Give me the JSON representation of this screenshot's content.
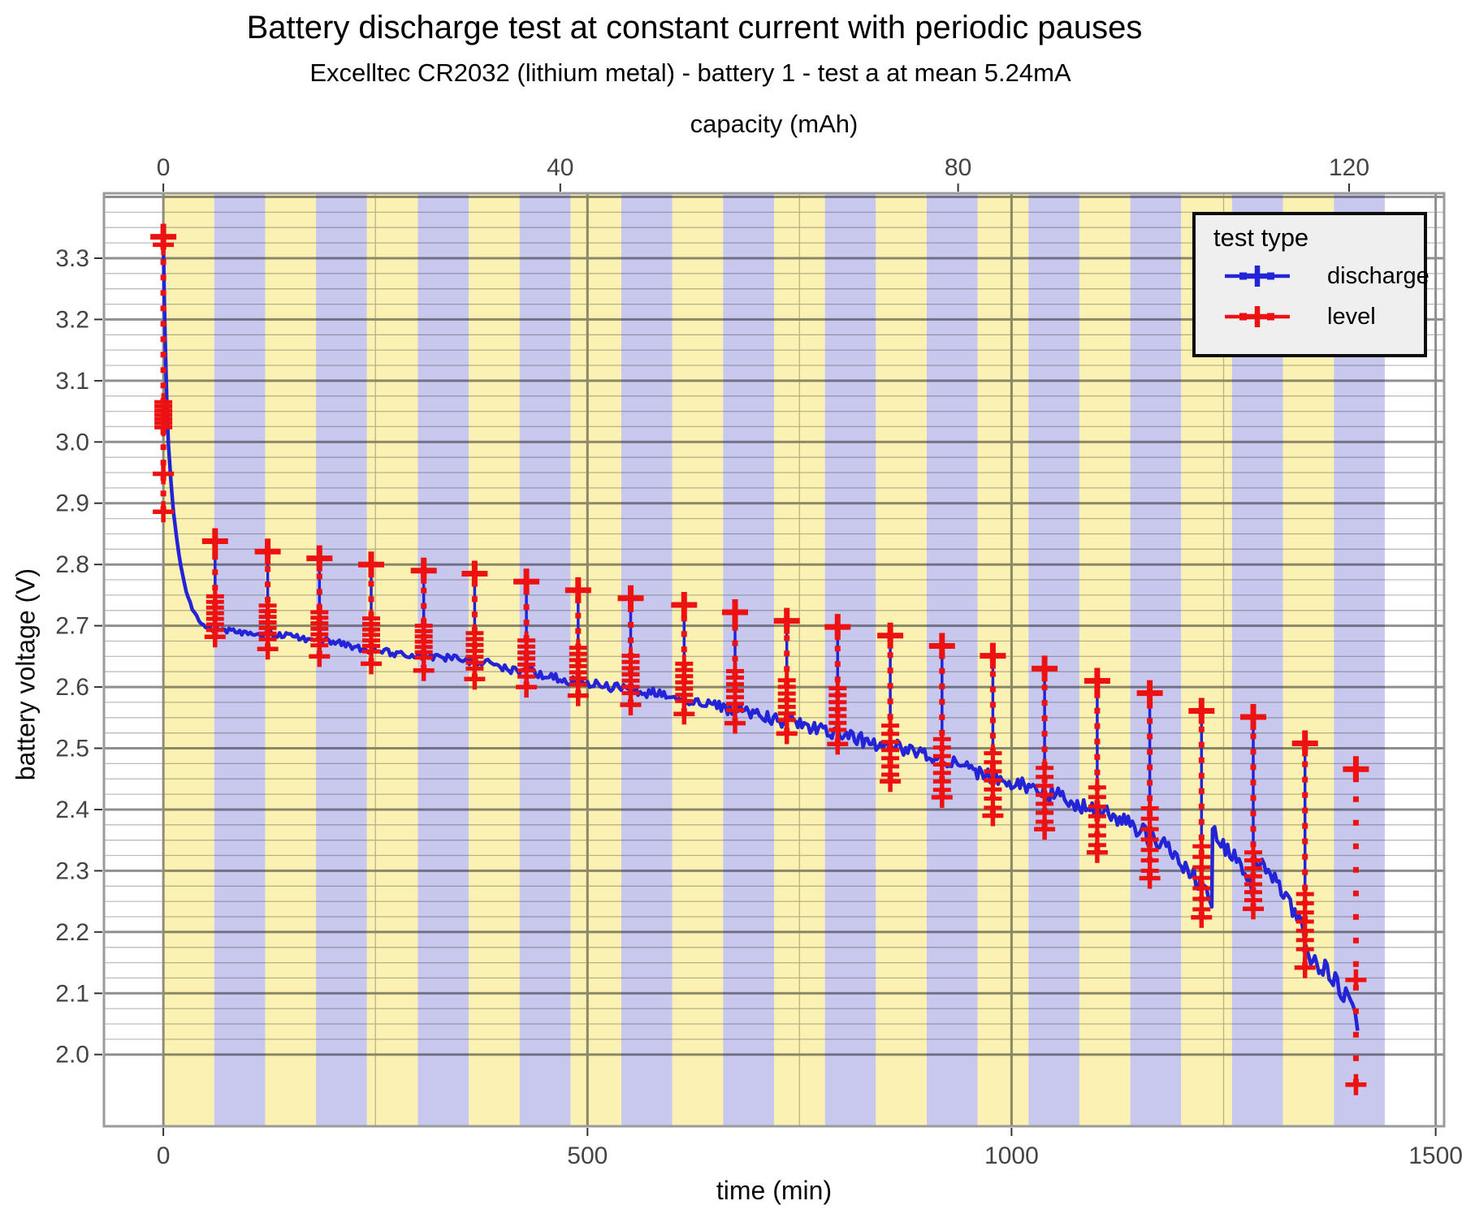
{
  "title": "Battery discharge test at constant current with periodic pauses",
  "subtitle": "Excelltec CR2032 (lithium metal) - battery 1 - test a at mean 5.24mA",
  "legend": {
    "title": "test type",
    "entries": [
      {
        "label": "discharge",
        "color": "#2323d7"
      },
      {
        "label": "level",
        "color": "#ee1111"
      }
    ]
  },
  "chart_data": {
    "type": "line",
    "title": "Battery discharge test at constant current with periodic pauses",
    "subtitle": "Excelltec CR2032 (lithium metal) - battery 1 - test a at mean 5.24mA",
    "x_axis": {
      "label": "time (min)",
      "range": [
        -70,
        1510
      ],
      "major_ticks": [
        0,
        500,
        1000,
        1500
      ],
      "minor_ticks": [
        250,
        750,
        1250
      ]
    },
    "x2_axis": {
      "label": "capacity (mAh)",
      "major_ticks": [
        0,
        40,
        80,
        120
      ],
      "tick_time_positions": [
        0,
        468,
        937,
        1398
      ]
    },
    "y_axis": {
      "label": "battery voltage (V)",
      "range": [
        1.883,
        3.406
      ],
      "major_tick_values": [
        2.0,
        2.1,
        2.2,
        2.3,
        2.4,
        2.5,
        2.6,
        2.7,
        2.8,
        2.9,
        3.0,
        3.1,
        3.2,
        3.3
      ],
      "major_grid_min": 2.0,
      "major_grid_max": 3.4,
      "major_step": 0.1,
      "minor_step": 0.025,
      "minor_grid_min": 2.025,
      "minor_grid_max": 3.375
    },
    "bands": {
      "start_min": 0,
      "band_width_min": 60,
      "count": 24,
      "colors": [
        "#faf1b2",
        "#c8c8ef"
      ],
      "meaning": "alternating 60-minute test segments"
    },
    "colors": {
      "band_yellow": "#faf1b2",
      "band_lavender": "#c8c8ef",
      "discharge_blue": "#2323d7",
      "level_red": "#ee1111",
      "panel_border": "#9b9b9b",
      "grid_major": "#8f8f8f",
      "grid_minor": "#bdbdbd",
      "tick_mark": "#333333",
      "tick_label": "#444444",
      "legend_bg": "#efefef",
      "legend_border": "#0d0d0d"
    },
    "series": [
      {
        "name": "discharge",
        "color": "#2323d7",
        "points": [
          [
            0,
            3.33
          ],
          [
            1,
            3.245
          ],
          [
            2,
            3.175
          ],
          [
            4,
            3.07
          ],
          [
            6,
            2.995
          ],
          [
            9,
            2.935
          ],
          [
            12,
            2.885
          ],
          [
            16,
            2.838
          ],
          [
            21,
            2.795
          ],
          [
            27,
            2.758
          ],
          [
            34,
            2.728
          ],
          [
            42,
            2.708
          ],
          [
            50,
            2.698
          ],
          [
            60,
            2.692
          ],
          [
            62,
            2.697
          ],
          [
            80,
            2.691
          ],
          [
            100,
            2.688
          ],
          [
            122,
            2.685
          ],
          [
            124,
            2.688
          ],
          [
            150,
            2.683
          ],
          [
            183,
            2.676
          ],
          [
            185,
            2.679
          ],
          [
            205,
            2.672
          ],
          [
            230,
            2.664
          ],
          [
            244,
            2.66
          ],
          [
            246,
            2.663
          ],
          [
            270,
            2.656
          ],
          [
            306,
            2.648
          ],
          [
            308,
            2.651
          ],
          [
            335,
            2.647
          ],
          [
            366,
            2.64
          ],
          [
            368,
            2.643
          ],
          [
            400,
            2.632
          ],
          [
            427,
            2.624
          ],
          [
            429,
            2.627
          ],
          [
            460,
            2.616
          ],
          [
            488,
            2.607
          ],
          [
            490,
            2.61
          ],
          [
            520,
            2.601
          ],
          [
            550,
            2.595
          ],
          [
            552,
            2.598
          ],
          [
            580,
            2.588
          ],
          [
            613,
            2.579
          ],
          [
            615,
            2.582
          ],
          [
            645,
            2.571
          ],
          [
            673,
            2.562
          ],
          [
            675,
            2.565
          ],
          [
            700,
            2.555
          ],
          [
            734,
            2.543
          ],
          [
            736,
            2.546
          ],
          [
            765,
            2.534
          ],
          [
            796,
            2.522
          ],
          [
            798,
            2.525
          ],
          [
            830,
            2.511
          ],
          [
            856,
            2.501
          ],
          [
            858,
            2.505
          ],
          [
            890,
            2.49
          ],
          [
            917,
            2.479
          ],
          [
            919,
            2.482
          ],
          [
            950,
            2.466
          ],
          [
            977,
            2.453
          ],
          [
            979,
            2.456
          ],
          [
            1010,
            2.441
          ],
          [
            1038,
            2.427
          ],
          [
            1040,
            2.43
          ],
          [
            1070,
            2.414
          ],
          [
            1100,
            2.399
          ],
          [
            1102,
            2.402
          ],
          [
            1130,
            2.385
          ],
          [
            1160,
            2.358
          ],
          [
            1162,
            2.352
          ],
          [
            1164,
            2.356
          ],
          [
            1185,
            2.335
          ],
          [
            1205,
            2.308
          ],
          [
            1220,
            2.282
          ],
          [
            1232,
            2.258
          ],
          [
            1236,
            2.248
          ],
          [
            1237,
            2.368
          ],
          [
            1252,
            2.34
          ],
          [
            1268,
            2.312
          ],
          [
            1280,
            2.29
          ],
          [
            1284,
            2.266
          ],
          [
            1286,
            2.326
          ],
          [
            1300,
            2.3
          ],
          [
            1318,
            2.268
          ],
          [
            1334,
            2.236
          ],
          [
            1344,
            2.212
          ],
          [
            1346,
            2.185
          ],
          [
            1348,
            2.168
          ],
          [
            1360,
            2.152
          ],
          [
            1372,
            2.136
          ],
          [
            1384,
            2.115
          ],
          [
            1394,
            2.096
          ],
          [
            1402,
            2.074
          ],
          [
            1408,
            2.048
          ]
        ]
      },
      {
        "name": "level",
        "color": "#ee1111",
        "spikes": [
          {
            "t": 0,
            "top": 3.335,
            "cluster_hi": 3.065,
            "cluster_lo": 3.024,
            "bottom": 2.886,
            "extra_marks": [
              3.322,
              2.948
            ]
          },
          {
            "t": 61,
            "top": 2.838,
            "cluster_hi": 2.748,
            "cluster_lo": 2.693,
            "bottom": 2.682
          },
          {
            "t": 123,
            "top": 2.821,
            "cluster_hi": 2.733,
            "cluster_lo": 2.678,
            "bottom": 2.662
          },
          {
            "t": 184,
            "top": 2.81,
            "cluster_hi": 2.722,
            "cluster_lo": 2.668,
            "bottom": 2.65
          },
          {
            "t": 245,
            "top": 2.8,
            "cluster_hi": 2.712,
            "cluster_lo": 2.658,
            "bottom": 2.638
          },
          {
            "t": 307,
            "top": 2.79,
            "cluster_hi": 2.7,
            "cluster_lo": 2.648,
            "bottom": 2.627
          },
          {
            "t": 367,
            "top": 2.785,
            "cluster_hi": 2.688,
            "cluster_lo": 2.63,
            "bottom": 2.613
          },
          {
            "t": 428,
            "top": 2.772,
            "cluster_hi": 2.676,
            "cluster_lo": 2.617,
            "bottom": 2.6
          },
          {
            "t": 489,
            "top": 2.758,
            "cluster_hi": 2.664,
            "cluster_lo": 2.604,
            "bottom": 2.586
          },
          {
            "t": 551,
            "top": 2.745,
            "cluster_hi": 2.651,
            "cluster_lo": 2.59,
            "bottom": 2.571
          },
          {
            "t": 614,
            "top": 2.734,
            "cluster_hi": 2.638,
            "cluster_lo": 2.577,
            "bottom": 2.556
          },
          {
            "t": 674,
            "top": 2.722,
            "cluster_hi": 2.626,
            "cluster_lo": 2.562,
            "bottom": 2.541
          },
          {
            "t": 735,
            "top": 2.708,
            "cluster_hi": 2.611,
            "cluster_lo": 2.546,
            "bottom": 2.524
          },
          {
            "t": 795,
            "top": 2.698,
            "cluster_hi": 2.598,
            "cluster_lo": 2.53,
            "bottom": 2.507
          },
          {
            "t": 857,
            "top": 2.684,
            "cluster_hi": 2.537,
            "cluster_lo": 2.457,
            "bottom": 2.446
          },
          {
            "t": 918,
            "top": 2.667,
            "cluster_hi": 2.515,
            "cluster_lo": 2.432,
            "bottom": 2.42
          },
          {
            "t": 978,
            "top": 2.651,
            "cluster_hi": 2.492,
            "cluster_lo": 2.403,
            "bottom": 2.39
          },
          {
            "t": 1039,
            "top": 2.63,
            "cluster_hi": 2.468,
            "cluster_lo": 2.38,
            "bottom": 2.368
          },
          {
            "t": 1101,
            "top": 2.61,
            "cluster_hi": 2.436,
            "cluster_lo": 2.342,
            "bottom": 2.33
          },
          {
            "t": 1163,
            "top": 2.59,
            "cluster_hi": 2.402,
            "cluster_lo": 2.3,
            "bottom": 2.288
          },
          {
            "t": 1224,
            "top": 2.561,
            "cluster_hi": 2.34,
            "cluster_lo": 2.237,
            "bottom": 2.224
          },
          {
            "t": 1285,
            "top": 2.551,
            "cluster_hi": 2.33,
            "cluster_lo": 2.252,
            "bottom": 2.238
          },
          {
            "t": 1346,
            "top": 2.508,
            "cluster_hi": 2.262,
            "cluster_lo": 2.172,
            "bottom": 2.142
          },
          {
            "t": 1406,
            "top": 2.466,
            "cluster_hi": null,
            "cluster_lo": null,
            "bottom": 1.951,
            "extra_marks": [
              2.122
            ],
            "blue_line": false,
            "sparse": true
          }
        ]
      }
    ]
  }
}
